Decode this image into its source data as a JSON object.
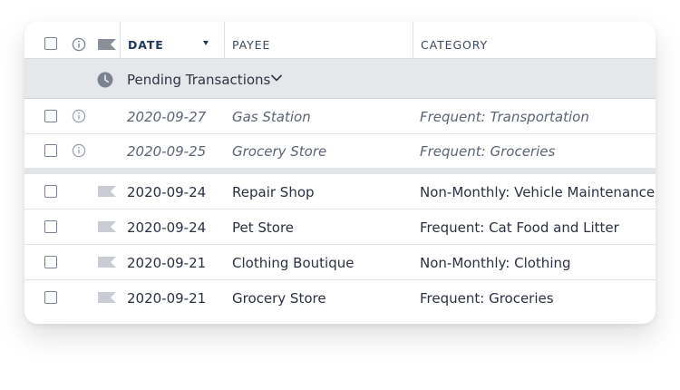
{
  "header": {
    "date_label": "DATE",
    "payee_label": "PAYEE",
    "category_label": "CATEGORY",
    "sort_indicator": "caret-down-icon"
  },
  "pending_group": {
    "label": "Pending Transactions",
    "icon": "clock-icon",
    "toggle_icon": "chevron-down-icon"
  },
  "pending_transactions": [
    {
      "date": "2020-09-27",
      "payee": "Gas Station",
      "category": "Frequent: Transportation"
    },
    {
      "date": "2020-09-25",
      "payee": "Grocery Store",
      "category": "Frequent: Groceries"
    }
  ],
  "transactions": [
    {
      "date": "2020-09-24",
      "payee": "Repair Shop",
      "category": "Non-Monthly: Vehicle Maintenance"
    },
    {
      "date": "2020-09-24",
      "payee": "Pet Store",
      "category": "Frequent: Cat Food and Litter"
    },
    {
      "date": "2020-09-21",
      "payee": "Clothing Boutique",
      "category": "Non-Monthly: Clothing"
    },
    {
      "date": "2020-09-21",
      "payee": "Grocery Store",
      "category": "Frequent: Groceries"
    }
  ],
  "colors": {
    "header_text": "#3c4a5f",
    "active_header": "#213a5c",
    "group_bg": "#e6e7eb",
    "flag_header": "#8a9099",
    "flag_row": "#c9ccd2"
  }
}
